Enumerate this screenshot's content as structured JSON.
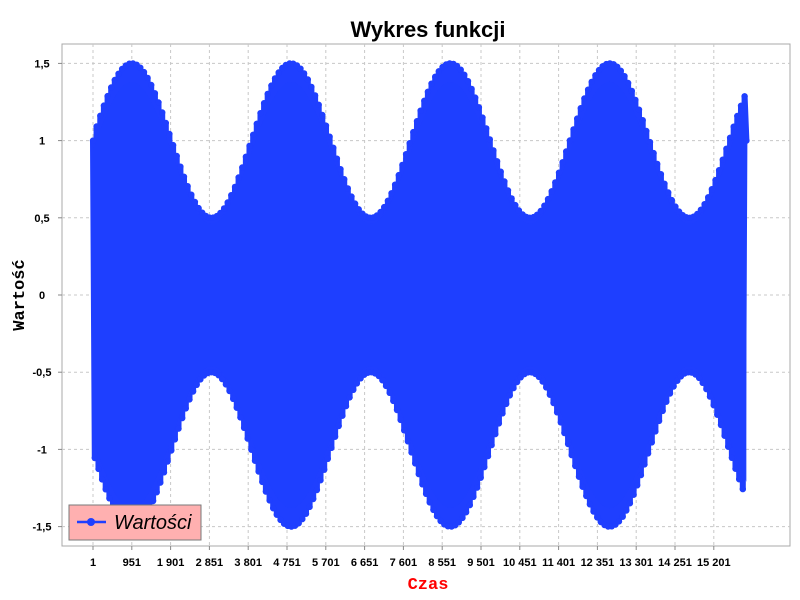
{
  "chart_data": {
    "type": "line",
    "title": "Wykres funkcji",
    "xlabel": "Czas",
    "ylabel": "Wartość",
    "xlim": [
      1,
      16000
    ],
    "ylim": [
      -1.6,
      1.6
    ],
    "x_ticks": [
      {
        "value": 1,
        "label": "1"
      },
      {
        "value": 951,
        "label": "951"
      },
      {
        "value": 1901,
        "label": "1 901"
      },
      {
        "value": 2851,
        "label": "2 851"
      },
      {
        "value": 3801,
        "label": "3 801"
      },
      {
        "value": 4751,
        "label": "4 751"
      },
      {
        "value": 5701,
        "label": "5 701"
      },
      {
        "value": 6651,
        "label": "6 651"
      },
      {
        "value": 7601,
        "label": "7 601"
      },
      {
        "value": 8551,
        "label": "8 551"
      },
      {
        "value": 9501,
        "label": "9 501"
      },
      {
        "value": 10451,
        "label": "10 451"
      },
      {
        "value": 11401,
        "label": "11 401"
      },
      {
        "value": 12351,
        "label": "12 351"
      },
      {
        "value": 13301,
        "label": "13 301"
      },
      {
        "value": 14251,
        "label": "14 251"
      },
      {
        "value": 15201,
        "label": "15 201"
      }
    ],
    "y_ticks": [
      {
        "value": 1.5,
        "label": "1,5"
      },
      {
        "value": 1,
        "label": "1"
      },
      {
        "value": 0.5,
        "label": "0,5"
      },
      {
        "value": 0,
        "label": "0"
      },
      {
        "value": -0.5,
        "label": "-0,5"
      },
      {
        "value": -1,
        "label": "-1"
      },
      {
        "value": -1.5,
        "label": "-1,5"
      }
    ],
    "grid": true,
    "legend_position": "bottom-left",
    "series": [
      {
        "name": "Wartości",
        "color": "#1f3fff",
        "marker": "circle",
        "x_start": 1,
        "x_end": 16000,
        "samples": 360,
        "amplitude_envelope": {
          "function": "1 + 0.5*cos(2*pi*t/3900)",
          "max": 1.5,
          "min": 0.5,
          "peak_x": [
            951,
            4900,
            8800,
            12700
          ],
          "trough_x": [
            2950,
            6850,
            10750,
            14650
          ]
        },
        "approx_oscillation_count": 240
      }
    ]
  }
}
